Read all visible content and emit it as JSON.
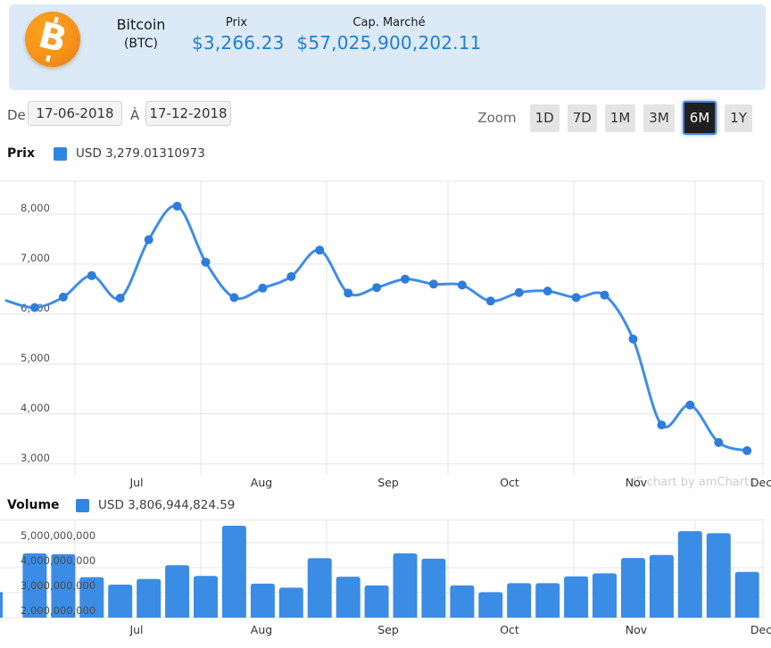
{
  "header": {
    "coin_name": "Bitcoin",
    "coin_symbol": "(BTC)",
    "price_label": "Prix",
    "price_value": "$3,266.23",
    "marketcap_label": "Cap. Marché",
    "marketcap_value": "$57,025,900,202.11",
    "colors": {
      "header_bg": "#dceaf8",
      "value_text": "#1f7fd4",
      "logo_orange": "#f7931a"
    }
  },
  "controls": {
    "from_label": "De",
    "from_value": "17-06-2018",
    "to_label": "À",
    "to_value": "17-12-2018",
    "zoom_label": "Zoom",
    "zoom_buttons": [
      {
        "label": "1D",
        "active": false
      },
      {
        "label": "7D",
        "active": false
      },
      {
        "label": "1M",
        "active": false
      },
      {
        "label": "3M",
        "active": false
      },
      {
        "label": "6M",
        "active": true
      },
      {
        "label": "1Y",
        "active": false
      }
    ]
  },
  "price_section": {
    "legend_title": "Prix",
    "legend_value": "USD 3,279.01310973",
    "legend_color": "#2f86e0"
  },
  "volume_section": {
    "legend_title": "Volume",
    "legend_value": "USD 3,806,944,824.59",
    "legend_color": "#2f86e0"
  },
  "watermark": "JS chart by amCharts",
  "chart_data": [
    {
      "type": "line",
      "title": "Prix",
      "unit": "USD",
      "x_range": [
        "17-06-2018",
        "17-12-2018"
      ],
      "x_interval": "weekly",
      "x_month_labels": [
        "Jul",
        "Aug",
        "Sep",
        "Oct",
        "Nov",
        "Dec"
      ],
      "y_ticks": [
        3000,
        4000,
        5000,
        6000,
        7000,
        8000
      ],
      "y_tick_labels": [
        "3,000",
        "4,000",
        "5,000",
        "6,000",
        "7,000",
        "8,000"
      ],
      "ylim": [
        2800,
        8660
      ],
      "values": [
        6270,
        6130,
        6340,
        6770,
        6320,
        7490,
        8160,
        7040,
        6330,
        6520,
        6750,
        7280,
        6420,
        6530,
        6700,
        6600,
        6580,
        6260,
        6430,
        6460,
        6330,
        6380,
        5500,
        3780,
        4180,
        3430,
        3266
      ],
      "first_point_clipped": true,
      "line_color": "#3e8de8",
      "bullet_color": "#2e7cdb",
      "grid": true,
      "legend_position": "top-left"
    },
    {
      "type": "bar",
      "title": "Volume",
      "unit": "USD",
      "x_range": [
        "17-06-2018",
        "17-12-2018"
      ],
      "x_interval": "weekly",
      "x_month_labels": [
        "Jul",
        "Aug",
        "Sep",
        "Oct",
        "Nov",
        "Dec"
      ],
      "y_ticks": [
        2000000000,
        3000000000,
        4000000000,
        5000000000
      ],
      "y_tick_labels": [
        "2,000,000,000",
        "3,000,000,000",
        "4,000,000,000",
        "5,000,000,000"
      ],
      "ylim": [
        2000000000,
        6000000000
      ],
      "values": [
        3020000000,
        4570000000,
        4540000000,
        3620000000,
        3320000000,
        3550000000,
        4100000000,
        3670000000,
        5680000000,
        3360000000,
        3200000000,
        4380000000,
        3640000000,
        3290000000,
        4570000000,
        4360000000,
        3290000000,
        3020000000,
        3380000000,
        3380000000,
        3650000000,
        3770000000,
        4390000000,
        4510000000,
        5460000000,
        5380000000,
        3830000000
      ],
      "first_bar_clipped": true,
      "bar_color": "#3b8ce4",
      "grid": true
    }
  ]
}
